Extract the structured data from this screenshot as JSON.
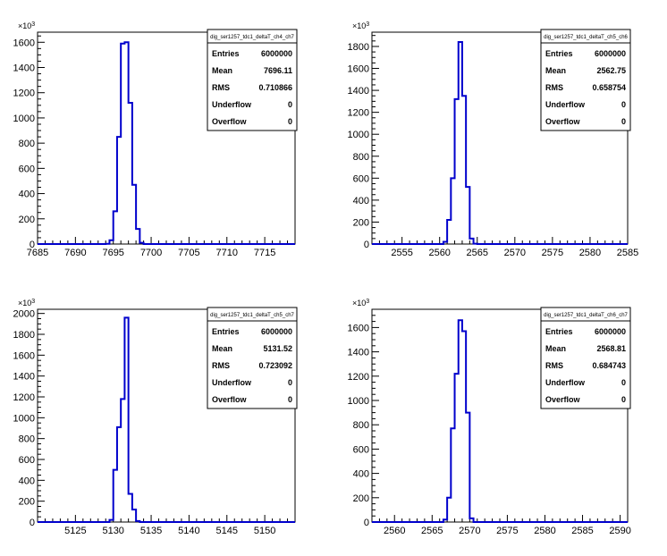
{
  "chart_data": [
    {
      "type": "histogram",
      "title": "",
      "xlabel": "",
      "ylabel": "",
      "y_exponent_label": "×10³",
      "xlim": [
        7685,
        7719
      ],
      "ylim": [
        0,
        1680
      ],
      "x_ticks": [
        7685,
        7690,
        7695,
        7700,
        7705,
        7710,
        7715
      ],
      "x_tick_labels": [
        "7685",
        "7690",
        "7695",
        "7700",
        "7705",
        "7710",
        "7715"
      ],
      "y_ticks": [
        0,
        200,
        400,
        600,
        800,
        1000,
        1200,
        1400,
        1600
      ],
      "y_tick_labels": [
        "0",
        "200",
        "400",
        "600",
        "800",
        "1000",
        "1200",
        "1400",
        "1600"
      ],
      "bin_width": 0.5,
      "bins": [
        {
          "x": 7694.0,
          "y": 2
        },
        {
          "x": 7694.5,
          "y": 30
        },
        {
          "x": 7695.0,
          "y": 260
        },
        {
          "x": 7695.5,
          "y": 850
        },
        {
          "x": 7696.0,
          "y": 1590
        },
        {
          "x": 7696.5,
          "y": 1600
        },
        {
          "x": 7697.0,
          "y": 1120
        },
        {
          "x": 7697.5,
          "y": 470
        },
        {
          "x": 7698.0,
          "y": 120
        },
        {
          "x": 7698.5,
          "y": 10
        }
      ],
      "stats": {
        "name": "dig_ser1257_tdc1_deltaT_ch4_ch7",
        "rows": [
          {
            "label": "Entries",
            "value": "6000000"
          },
          {
            "label": "Mean",
            "value": "7696.11"
          },
          {
            "label": "RMS",
            "value": "0.710866"
          },
          {
            "label": "Underflow",
            "value": "0"
          },
          {
            "label": "Overflow",
            "value": "0"
          }
        ]
      },
      "line_color": "#0000cc"
    },
    {
      "type": "histogram",
      "title": "",
      "xlabel": "",
      "ylabel": "",
      "y_exponent_label": "×10³",
      "xlim": [
        2551,
        2585
      ],
      "ylim": [
        0,
        1930
      ],
      "x_ticks": [
        2555,
        2560,
        2565,
        2570,
        2575,
        2580,
        2585
      ],
      "x_tick_labels": [
        "2555",
        "2560",
        "2565",
        "2570",
        "2575",
        "2580",
        "2585"
      ],
      "y_ticks": [
        0,
        200,
        400,
        600,
        800,
        1000,
        1200,
        1400,
        1600,
        1800
      ],
      "y_tick_labels": [
        "0",
        "200",
        "400",
        "600",
        "800",
        "1000",
        "1200",
        "1400",
        "1600",
        "1800"
      ],
      "bin_width": 0.5,
      "bins": [
        {
          "x": 2560.5,
          "y": 20
        },
        {
          "x": 2561.0,
          "y": 220
        },
        {
          "x": 2561.5,
          "y": 600
        },
        {
          "x": 2562.0,
          "y": 1320
        },
        {
          "x": 2562.5,
          "y": 1840
        },
        {
          "x": 2563.0,
          "y": 1350
        },
        {
          "x": 2563.5,
          "y": 520
        },
        {
          "x": 2564.0,
          "y": 50
        },
        {
          "x": 2564.5,
          "y": 3
        }
      ],
      "stats": {
        "name": "dig_ser1257_tdc1_deltaT_ch5_ch6",
        "rows": [
          {
            "label": "Entries",
            "value": "6000000"
          },
          {
            "label": "Mean",
            "value": "2562.75"
          },
          {
            "label": "RMS",
            "value": "0.658754"
          },
          {
            "label": "Underflow",
            "value": "0"
          },
          {
            "label": "Overflow",
            "value": "0"
          }
        ]
      },
      "line_color": "#0000cc"
    },
    {
      "type": "histogram",
      "title": "",
      "xlabel": "",
      "ylabel": "",
      "y_exponent_label": "×10³",
      "xlim": [
        5120,
        5154
      ],
      "ylim": [
        0,
        2040
      ],
      "x_ticks": [
        5125,
        5130,
        5135,
        5140,
        5145,
        5150
      ],
      "x_tick_labels": [
        "5125",
        "5130",
        "5135",
        "5140",
        "5145",
        "5150"
      ],
      "y_ticks": [
        0,
        200,
        400,
        600,
        800,
        1000,
        1200,
        1400,
        1600,
        1800,
        2000
      ],
      "y_tick_labels": [
        "0",
        "200",
        "400",
        "600",
        "800",
        "1000",
        "1200",
        "1400",
        "1600",
        "1800",
        "2000"
      ],
      "bin_width": 0.5,
      "bins": [
        {
          "x": 5129.5,
          "y": 20
        },
        {
          "x": 5130.0,
          "y": 500
        },
        {
          "x": 5130.5,
          "y": 910
        },
        {
          "x": 5131.0,
          "y": 1180
        },
        {
          "x": 5131.5,
          "y": 1960
        },
        {
          "x": 5132.0,
          "y": 270
        },
        {
          "x": 5132.5,
          "y": 120
        },
        {
          "x": 5133.0,
          "y": 10
        }
      ],
      "stats": {
        "name": "dig_ser1257_tdc1_deltaT_ch5_ch7",
        "rows": [
          {
            "label": "Entries",
            "value": "6000000"
          },
          {
            "label": "Mean",
            "value": "5131.52"
          },
          {
            "label": "RMS",
            "value": "0.723092"
          },
          {
            "label": "Underflow",
            "value": "0"
          },
          {
            "label": "Overflow",
            "value": "0"
          }
        ]
      },
      "line_color": "#0000cc"
    },
    {
      "type": "histogram",
      "title": "",
      "xlabel": "",
      "ylabel": "",
      "y_exponent_label": "×10³",
      "xlim": [
        2557,
        2591
      ],
      "ylim": [
        0,
        1750
      ],
      "x_ticks": [
        2560,
        2565,
        2570,
        2575,
        2580,
        2585,
        2590
      ],
      "x_tick_labels": [
        "2560",
        "2565",
        "2570",
        "2575",
        "2580",
        "2585",
        "2590"
      ],
      "y_ticks": [
        0,
        200,
        400,
        600,
        800,
        1000,
        1200,
        1400,
        1600
      ],
      "y_tick_labels": [
        "0",
        "200",
        "400",
        "600",
        "800",
        "1000",
        "1200",
        "1400",
        "1600"
      ],
      "bin_width": 0.5,
      "bins": [
        {
          "x": 2566.5,
          "y": 20
        },
        {
          "x": 2567.0,
          "y": 200
        },
        {
          "x": 2567.5,
          "y": 770
        },
        {
          "x": 2568.0,
          "y": 1220
        },
        {
          "x": 2568.5,
          "y": 1660
        },
        {
          "x": 2569.0,
          "y": 1570
        },
        {
          "x": 2569.5,
          "y": 900
        },
        {
          "x": 2570.0,
          "y": 30
        }
      ],
      "stats": {
        "name": "dig_ser1257_tdc1_deltaT_ch6_ch7",
        "rows": [
          {
            "label": "Entries",
            "value": "6000000"
          },
          {
            "label": "Mean",
            "value": "2568.81"
          },
          {
            "label": "RMS",
            "value": "0.684743"
          },
          {
            "label": "Underflow",
            "value": "0"
          },
          {
            "label": "Overflow",
            "value": "0"
          }
        ]
      },
      "line_color": "#0000cc"
    }
  ]
}
